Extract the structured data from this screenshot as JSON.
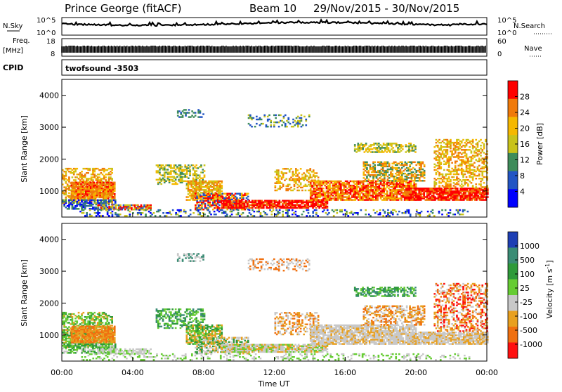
{
  "header": {
    "station": "Prince George (fitACF)",
    "beam": "Beam 10",
    "date_range": "29/Nov/2015 - 30/Nov/2015"
  },
  "strip_labels": {
    "nsky": "N.Sky",
    "nsky_ticks": [
      "10^5",
      "10^0"
    ],
    "nsearch": "N.Search",
    "freq": "Freq.",
    "freq_unit": "[MHz]",
    "freq_ticks": [
      "18",
      "8"
    ],
    "nave": "Nave",
    "nave_ticks": [
      "60",
      "0"
    ],
    "cpid": "CPID",
    "cpid_value": "twofsound -3503"
  },
  "chart_data": [
    {
      "type": "heatmap",
      "title": "",
      "xlabel": "Time UT",
      "ylabel": "Slant Range [km]",
      "x_ticks": [
        "00:00",
        "04:00",
        "08:00",
        "12:00",
        "16:00",
        "20:00",
        "00:00"
      ],
      "x_range_hours": [
        0,
        24
      ],
      "y_ticks": [
        4000,
        3000,
        2000,
        1000
      ],
      "ylim": [
        180,
        4500
      ],
      "colorbar": {
        "label": "Power [dB]",
        "ticks": [
          28,
          24,
          20,
          16,
          12,
          8,
          4
        ],
        "range": [
          0,
          30
        ],
        "colors": [
          "#ff0000",
          "#f07a0a",
          "#f5b800",
          "#c9c31a",
          "#3e8c5a",
          "#2255c4",
          "#0000ff"
        ]
      }
    },
    {
      "type": "heatmap",
      "title": "",
      "xlabel": "Time UT",
      "ylabel": "Slant Range [km]",
      "x_ticks": [
        "00:00",
        "04:00",
        "08:00",
        "12:00",
        "16:00",
        "20:00",
        "00:00"
      ],
      "x_range_hours": [
        0,
        24
      ],
      "y_ticks": [
        4000,
        3000,
        2000,
        1000
      ],
      "ylim": [
        180,
        4500
      ],
      "colorbar": {
        "label": "Velocity [m s",
        "label_sup": "-1",
        "label_end": "]",
        "ticks": [
          "1000",
          "500",
          "100",
          "25",
          "-25",
          "-100",
          "-500",
          "-1000"
        ],
        "colors": [
          "#1e3fb4",
          "#3a8c75",
          "#2e9a3a",
          "#66cc33",
          "#c8c8c8",
          "#e8a020",
          "#f07010",
          "#ff1010"
        ]
      }
    }
  ]
}
